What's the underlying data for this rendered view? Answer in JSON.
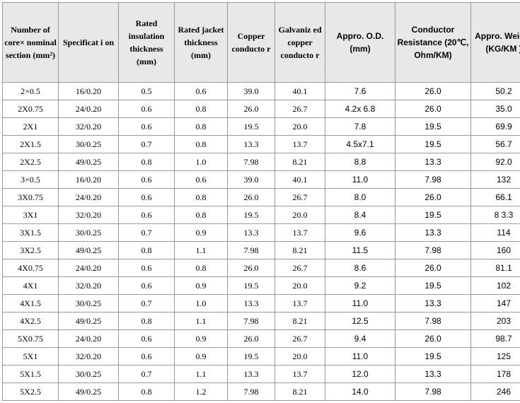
{
  "table": {
    "headers": [
      "Number of core× nominal section (mm²)",
      "Specificat i on",
      "Rated insulation thickness (mm)",
      "Rated jacket thickness (mm)",
      "Copper conducto r",
      "Galvaniz ed copper conducto r",
      "Appro. O.D. (mm)",
      "Conductor Resistance (20℃, Ohm/KM)",
      "Appro. Weight (KG/KM )"
    ],
    "column_classes": [
      "col-0",
      "col-1",
      "col-2",
      "col-3",
      "col-4",
      "col-5",
      "col-6",
      "col-7",
      "col-8"
    ],
    "header_font_group": [
      "a",
      "a",
      "a",
      "a",
      "a",
      "a",
      "b",
      "b",
      "b"
    ],
    "column_font_group": [
      "a",
      "a",
      "a",
      "a",
      "a",
      "a",
      "b",
      "b",
      "b"
    ],
    "rows": [
      [
        "2×0.5",
        "16/0.20",
        "0.5",
        "0.6",
        "39.0",
        "40.1",
        "7.6",
        "26.0",
        "50.2"
      ],
      [
        "2X0.75",
        "24/0.20",
        "0.6",
        "0.8",
        "26.0",
        "26.7",
        "4.2x 6.8",
        "26.0",
        "35.0"
      ],
      [
        "2X1",
        "32/0.20",
        "0.6",
        "0.8",
        "19.5",
        "20.0",
        "7.8",
        "19.5",
        "69.9"
      ],
      [
        "2X1.5",
        "30/0.25",
        "0.7",
        "0.8",
        "13.3",
        "13.7",
        "4.5x7.1",
        "19.5",
        "56.7"
      ],
      [
        "2X2.5",
        "49/0.25",
        "0.8",
        "1.0",
        "7.98",
        "8.21",
        "8.8",
        "13.3",
        "92.0"
      ],
      [
        "3×0.5",
        "16/0.20",
        "0.6",
        "0.6",
        "39.0",
        "40.1",
        "11.0",
        "7.98",
        "132"
      ],
      [
        "3X0.75",
        "24/0.20",
        "0.6",
        "0.8",
        "26.0",
        "26.7",
        "8.0",
        "26.0",
        "66.1"
      ],
      [
        "3X1",
        "32/0.20",
        "0.6",
        "0.8",
        "19.5",
        "20.0",
        "8.4",
        "19.5",
        "8 3.3"
      ],
      [
        "3X1.5",
        "30/0.25",
        "0.7",
        "0.9",
        "13.3",
        "13.7",
        "9.6",
        "13.3",
        "114"
      ],
      [
        "3X2.5",
        "49/0.25",
        "0.8",
        "1.1",
        "7.98",
        "8.21",
        "11.5",
        "7.98",
        "160"
      ],
      [
        "4X0.75",
        "24/0.20",
        "0.6",
        "0.8",
        "26.0",
        "26.7",
        "8.6",
        "26.0",
        "81.1"
      ],
      [
        "4X1",
        "32/0.20",
        "0.6",
        "0.9",
        "19.5",
        "20.0",
        "9.2",
        "19.5",
        "102"
      ],
      [
        "4X1.5",
        "30/0.25",
        "0.7",
        "1.0",
        "13.3",
        "13.7",
        "11.0",
        "13.3",
        "147"
      ],
      [
        "4X2.5",
        "49/0.25",
        "0.8",
        "1.1",
        "7.98",
        "8.21",
        "12.5",
        "7.98",
        "203"
      ],
      [
        "5X0.75",
        "24/0.20",
        "0.6",
        "0.9",
        "26.0",
        "26.7",
        "9.4",
        "26.0",
        "98.7"
      ],
      [
        "5X1",
        "32/0.20",
        "0.6",
        "0.9",
        "19.5",
        "20.0",
        "11.0",
        "19.5",
        "125"
      ],
      [
        "5X1.5",
        "30/0.25",
        "0.7",
        "1.1",
        "13.3",
        "13.7",
        "12.0",
        "13.3",
        "178"
      ],
      [
        "5X2.5",
        "49/0.25",
        "0.8",
        "1.2",
        "7.98",
        "8.21",
        "14.0",
        "7.98",
        "246"
      ]
    ],
    "colors": {
      "header_bg": "#e8e8e8",
      "border": "#999999",
      "text": "#000000",
      "background": "#ffffff"
    },
    "fontsize": 12
  }
}
